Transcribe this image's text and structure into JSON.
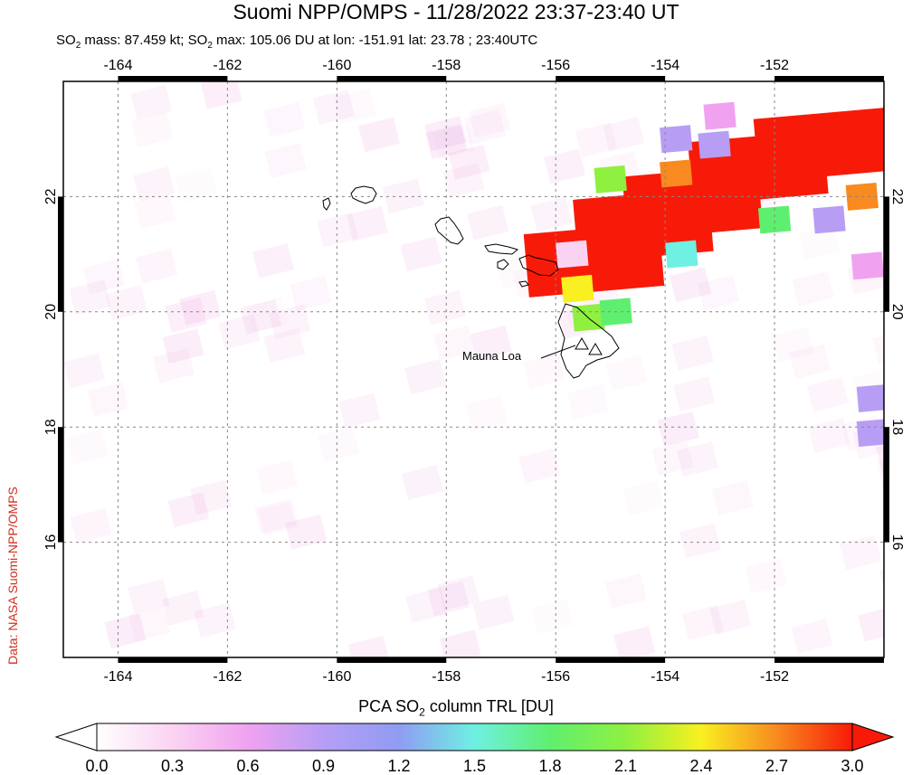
{
  "title": "Suomi NPP/OMPS - 11/28/2022 23:37-23:40 UT",
  "subtitle": {
    "prefix": "SO",
    "sub": "2",
    "mid1": " mass: 87.459 kt; SO",
    "mid2": " max: 105.06 DU at lon: -151.91 lat: 23.78 ; 23:40UTC"
  },
  "side_credit": "Data: NASA Suomi-NPP/OMPS",
  "map": {
    "lon_range": [
      -165.0,
      -150.0
    ],
    "lat_range": [
      14.0,
      24.0
    ],
    "lon_ticks": [
      "-164",
      "-162",
      "-160",
      "-158",
      "-156",
      "-154",
      "-152"
    ],
    "lat_ticks": [
      "16",
      "18",
      "20",
      "22"
    ],
    "volcano_label": "Mauna Loa"
  },
  "colorbar": {
    "label_prefix": "PCA SO",
    "label_sub": "2",
    "label_suffix": " column TRL [DU]",
    "range": [
      0.0,
      3.0
    ],
    "ticks": [
      "0.0",
      "0.3",
      "0.6",
      "0.9",
      "1.2",
      "1.5",
      "1.8",
      "2.1",
      "2.4",
      "2.7",
      "3.0"
    ],
    "colors": [
      "#ffffff",
      "#fbd3f2",
      "#f0a2f0",
      "#b79ef4",
      "#8f9cf3",
      "#6ef0e2",
      "#5fef70",
      "#8ff040",
      "#f8f020",
      "#f88a20",
      "#f81a08"
    ]
  },
  "so2_cells": [
    {
      "lon": -151.1,
      "lat": 22.9,
      "v": 3.0
    },
    {
      "lon": -152.3,
      "lat": 22.5,
      "v": 3.0
    },
    {
      "lon": -153.5,
      "lat": 21.9,
      "v": 3.0
    },
    {
      "lon": -154.4,
      "lat": 21.5,
      "v": 3.0
    },
    {
      "lon": -155.3,
      "lat": 20.9,
      "v": 3.0
    },
    {
      "lon": -151.0,
      "lat": 21.6,
      "v": 1.0
    },
    {
      "lon": -152.0,
      "lat": 21.6,
      "v": 1.9
    },
    {
      "lon": -153.8,
      "lat": 22.4,
      "v": 2.7
    },
    {
      "lon": -155.0,
      "lat": 22.3,
      "v": 2.0
    },
    {
      "lon": -153.0,
      "lat": 23.4,
      "v": 0.6
    },
    {
      "lon": -153.1,
      "lat": 22.9,
      "v": 1.0
    },
    {
      "lon": -153.8,
      "lat": 23.0,
      "v": 0.8
    },
    {
      "lon": -155.6,
      "lat": 20.4,
      "v": 2.4
    },
    {
      "lon": -155.4,
      "lat": 19.9,
      "v": 2.0
    },
    {
      "lon": -154.9,
      "lat": 20.0,
      "v": 1.7
    },
    {
      "lon": -153.7,
      "lat": 21.0,
      "v": 1.6
    },
    {
      "lon": -150.3,
      "lat": 20.8,
      "v": 0.5
    },
    {
      "lon": -150.2,
      "lat": 18.5,
      "v": 1.0
    },
    {
      "lon": -150.2,
      "lat": 17.9,
      "v": 0.8
    },
    {
      "lon": -155.7,
      "lat": 21.0,
      "v": 0.4
    },
    {
      "lon": -150.4,
      "lat": 22.0,
      "v": 2.7
    }
  ]
}
